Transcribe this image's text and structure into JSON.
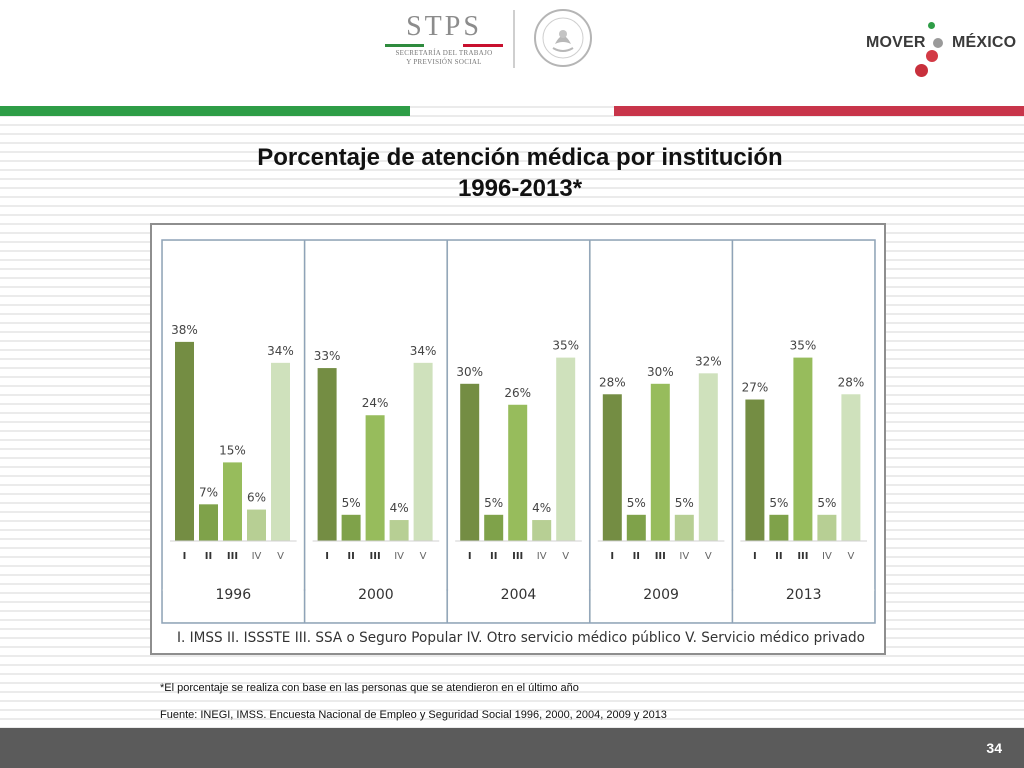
{
  "header": {
    "stps": {
      "title": "STPS",
      "subtitle_line1": "SECRETARÍA DEL TRABAJO",
      "subtitle_line2": "Y PREVISIÓN SOCIAL"
    },
    "seal": {
      "text": "ESTADOS UNIDOS MEXICANOS",
      "icon": "coat-of-arms-icon"
    },
    "mover": {
      "left": "MOVER",
      "right": "MÉXICO"
    }
  },
  "colors": {
    "green_band": "#2e9d47",
    "red_band": "#c8354a",
    "series": [
      "#748d43",
      "#7fa24a",
      "#97bc5c",
      "#b7cf94",
      "#cfe1bc"
    ]
  },
  "title": {
    "line1": "Porcentaje de atención médica por institución",
    "line2": "1996-2013*"
  },
  "chart_data": {
    "type": "bar",
    "series_names": [
      "I",
      "II",
      "III",
      "IV",
      "V"
    ],
    "groups": [
      {
        "year": "1996",
        "values": [
          38,
          7,
          15,
          6,
          34
        ],
        "labels": [
          "38%",
          "7%",
          "15%",
          "6%",
          "34%"
        ]
      },
      {
        "year": "2000",
        "values": [
          33,
          5,
          24,
          4,
          34
        ],
        "labels": [
          "33%",
          "5%",
          "24%",
          "4%",
          "34%"
        ]
      },
      {
        "year": "2004",
        "values": [
          30,
          5,
          26,
          4,
          35
        ],
        "labels": [
          "30%",
          "5%",
          "26%",
          "4%",
          "35%"
        ]
      },
      {
        "year": "2009",
        "values": [
          28,
          5,
          30,
          5,
          32
        ],
        "labels": [
          "28%",
          "5%",
          "30%",
          "5%",
          "32%"
        ]
      },
      {
        "year": "2013",
        "values": [
          27,
          5,
          35,
          5,
          28
        ],
        "labels": [
          "27%",
          "5%",
          "35%",
          "5%",
          "28%"
        ]
      }
    ],
    "legend": "I. IMSS    II. ISSSTE    III. SSA o Seguro Popular    IV. Otro servicio médico público    V. Servicio médico privado",
    "ylim": [
      0,
      40
    ],
    "grid": false
  },
  "notes": {
    "footnote": "*El porcentaje se realiza con base en las personas que se atendieron en el último año",
    "source": "Fuente: INEGI, IMSS. Encuesta Nacional de Empleo y Seguridad Social 1996, 2000, 2004, 2009 y 2013"
  },
  "page_number": "34"
}
